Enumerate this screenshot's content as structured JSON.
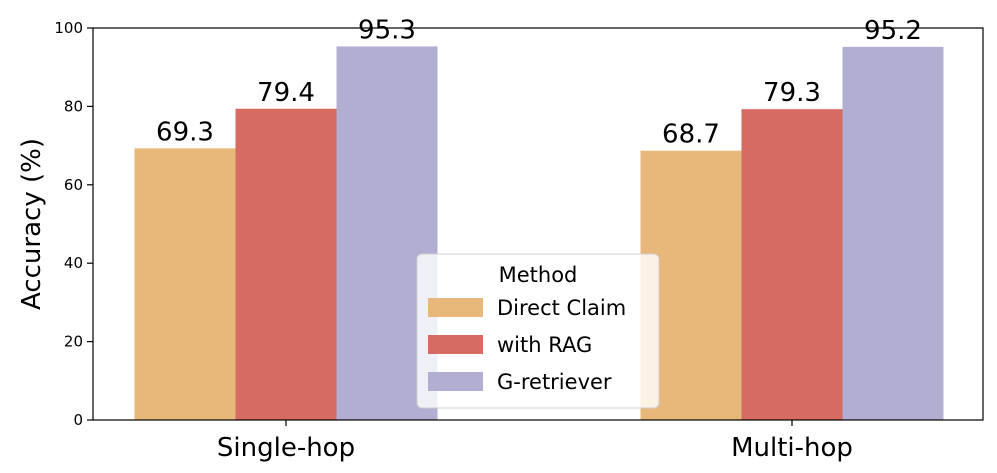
{
  "chart_data": {
    "type": "bar",
    "title": "",
    "xlabel": "",
    "ylabel": "Accuracy (%)",
    "ylim": [
      0,
      100
    ],
    "yticks": [
      0,
      20,
      40,
      60,
      80,
      100
    ],
    "categories": [
      "Single-hop",
      "Multi-hop"
    ],
    "series": [
      {
        "name": "Direct Claim",
        "values": [
          69.3,
          68.7
        ],
        "color": "#E8B87A"
      },
      {
        "name": "with RAG",
        "values": [
          79.4,
          79.3
        ],
        "color": "#D66B61"
      },
      {
        "name": "G-retriever",
        "values": [
          95.3,
          95.2
        ],
        "color": "#B1AED1"
      }
    ],
    "legend": {
      "title": "Method",
      "placement": "bottom-center"
    },
    "grid": false
  }
}
